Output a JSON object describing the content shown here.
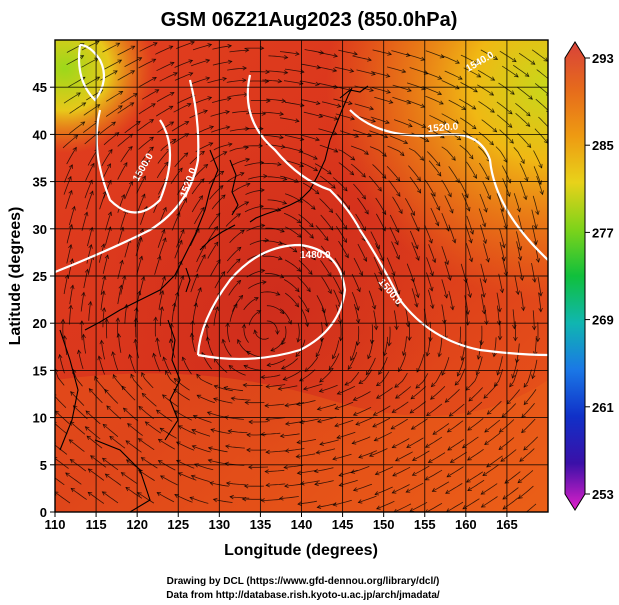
{
  "title": "GSM 06Z21Aug2023 (850.0hPa)",
  "xlabel": "Longitude (degrees)",
  "ylabel": "Latitude (degrees)",
  "x_ticks": [
    "110",
    "115",
    "120",
    "125",
    "130",
    "135",
    "140",
    "145",
    "150",
    "155",
    "160",
    "165"
  ],
  "y_ticks": [
    "0",
    "5",
    "10",
    "15",
    "20",
    "25",
    "30",
    "35",
    "40",
    "45"
  ],
  "colorbar": {
    "labels": [
      "293",
      "285",
      "277",
      "269",
      "261",
      "253"
    ],
    "colors": [
      "#d8423a",
      "#e66a1c",
      "#ee9a12",
      "#e8d21a",
      "#7ed31a",
      "#10c03c",
      "#10b6b0",
      "#1a78e6",
      "#1030c8",
      "#3a10a8",
      "#9a10b8",
      "#e020c8"
    ]
  },
  "contours": [
    {
      "label": "1500.0"
    },
    {
      "label": "1520.0"
    },
    {
      "label": "1480.0"
    },
    {
      "label": "1500.0"
    },
    {
      "label": "1520.0"
    },
    {
      "label": "1540.0"
    }
  ],
  "credits": {
    "line1": "Drawing by DCL (https://www.gfd-dennou.org/library/dcl/)",
    "line2": "Data from http://database.rish.kyoto-u.ac.jp/arch/jmadata/"
  },
  "map_data": {
    "type": "meteorological-field",
    "level": "850.0hPa",
    "field": "temperature (K) with geopotential height contours and streamlines",
    "lon_range": [
      110,
      170
    ],
    "lat_range": [
      0,
      50
    ],
    "color_range": [
      253,
      293
    ]
  }
}
